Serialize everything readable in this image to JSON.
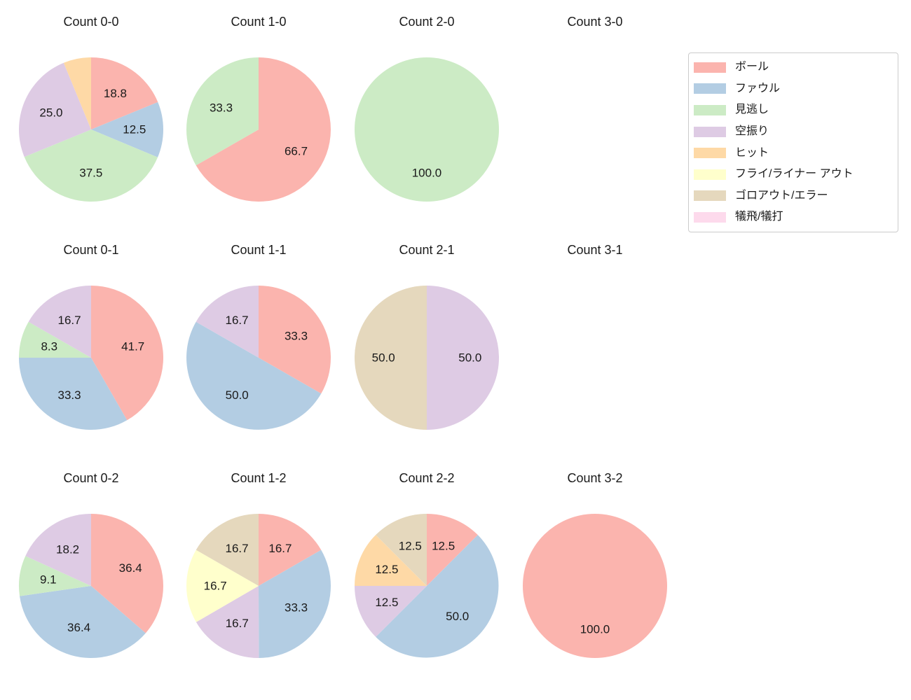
{
  "figure": {
    "background": "#ffffff",
    "text_color": "#1a1a1a"
  },
  "legend": {
    "position": "upper-right",
    "border_color": "#cccccc",
    "entries": [
      {
        "label": "ボール",
        "color": "#fbb4ae"
      },
      {
        "label": "ファウル",
        "color": "#b3cde3"
      },
      {
        "label": "見逃し",
        "color": "#ccebc5"
      },
      {
        "label": "空振り",
        "color": "#decbe4"
      },
      {
        "label": "ヒット",
        "color": "#fed9a6"
      },
      {
        "label": "フライ/ライナー アウト",
        "color": "#ffffcc"
      },
      {
        "label": "ゴロアウト/エラー",
        "color": "#e5d8bd"
      },
      {
        "label": "犠飛/犠打",
        "color": "#fddaec"
      }
    ]
  },
  "chart_data": {
    "type": "pie",
    "grid": {
      "rows": 3,
      "cols": 4
    },
    "start_angle_deg": 90,
    "direction": "clockwise",
    "pct_label_distance": 0.6,
    "values_unit": "percent",
    "categories": [
      "ボール",
      "ファウル",
      "見逃し",
      "空振り",
      "ヒット",
      "フライ/ライナー アウト",
      "ゴロアウト/エラー",
      "犠飛/犠打"
    ],
    "charts": [
      {
        "title": "Count 0-0",
        "slices": [
          {
            "category": "ボール",
            "value": 18.8,
            "label": "18.8"
          },
          {
            "category": "ファウル",
            "value": 12.5,
            "label": "12.5"
          },
          {
            "category": "見逃し",
            "value": 37.5,
            "label": "37.5"
          },
          {
            "category": "空振り",
            "value": 25.0,
            "label": "25.0"
          },
          {
            "category": "ヒット",
            "value": 6.2,
            "label": ""
          }
        ]
      },
      {
        "title": "Count 1-0",
        "slices": [
          {
            "category": "ボール",
            "value": 66.7,
            "label": "66.7"
          },
          {
            "category": "見逃し",
            "value": 33.3,
            "label": "33.3"
          }
        ]
      },
      {
        "title": "Count 2-0",
        "slices": [
          {
            "category": "見逃し",
            "value": 100.0,
            "label": "100.0"
          }
        ]
      },
      {
        "title": "Count 3-0",
        "slices": []
      },
      {
        "title": "Count 0-1",
        "slices": [
          {
            "category": "ボール",
            "value": 41.7,
            "label": "41.7"
          },
          {
            "category": "ファウル",
            "value": 33.3,
            "label": "33.3"
          },
          {
            "category": "見逃し",
            "value": 8.3,
            "label": "8.3"
          },
          {
            "category": "空振り",
            "value": 16.7,
            "label": "16.7"
          }
        ]
      },
      {
        "title": "Count 1-1",
        "slices": [
          {
            "category": "ボール",
            "value": 33.3,
            "label": "33.3"
          },
          {
            "category": "ファウル",
            "value": 50.0,
            "label": "50.0"
          },
          {
            "category": "空振り",
            "value": 16.7,
            "label": "16.7"
          }
        ]
      },
      {
        "title": "Count 2-1",
        "slices": [
          {
            "category": "空振り",
            "value": 50.0,
            "label": "50.0"
          },
          {
            "category": "ゴロアウト/エラー",
            "value": 50.0,
            "label": "50.0"
          }
        ]
      },
      {
        "title": "Count 3-1",
        "slices": []
      },
      {
        "title": "Count 0-2",
        "slices": [
          {
            "category": "ボール",
            "value": 36.4,
            "label": "36.4"
          },
          {
            "category": "ファウル",
            "value": 36.4,
            "label": "36.4"
          },
          {
            "category": "見逃し",
            "value": 9.1,
            "label": "9.1"
          },
          {
            "category": "空振り",
            "value": 18.2,
            "label": "18.2"
          }
        ]
      },
      {
        "title": "Count 1-2",
        "slices": [
          {
            "category": "ボール",
            "value": 16.7,
            "label": "16.7"
          },
          {
            "category": "ファウル",
            "value": 33.3,
            "label": "33.3"
          },
          {
            "category": "空振り",
            "value": 16.7,
            "label": "16.7"
          },
          {
            "category": "フライ/ライナー アウト",
            "value": 16.7,
            "label": "16.7"
          },
          {
            "category": "ゴロアウト/エラー",
            "value": 16.7,
            "label": "16.7"
          }
        ]
      },
      {
        "title": "Count 2-2",
        "slices": [
          {
            "category": "ボール",
            "value": 12.5,
            "label": "12.5"
          },
          {
            "category": "ファウル",
            "value": 50.0,
            "label": "50.0"
          },
          {
            "category": "空振り",
            "value": 12.5,
            "label": "12.5"
          },
          {
            "category": "ヒット",
            "value": 12.5,
            "label": "12.5"
          },
          {
            "category": "ゴロアウト/エラー",
            "value": 12.5,
            "label": "12.5"
          }
        ]
      },
      {
        "title": "Count 3-2",
        "slices": [
          {
            "category": "ボール",
            "value": 100.0,
            "label": "100.0"
          }
        ]
      }
    ]
  }
}
